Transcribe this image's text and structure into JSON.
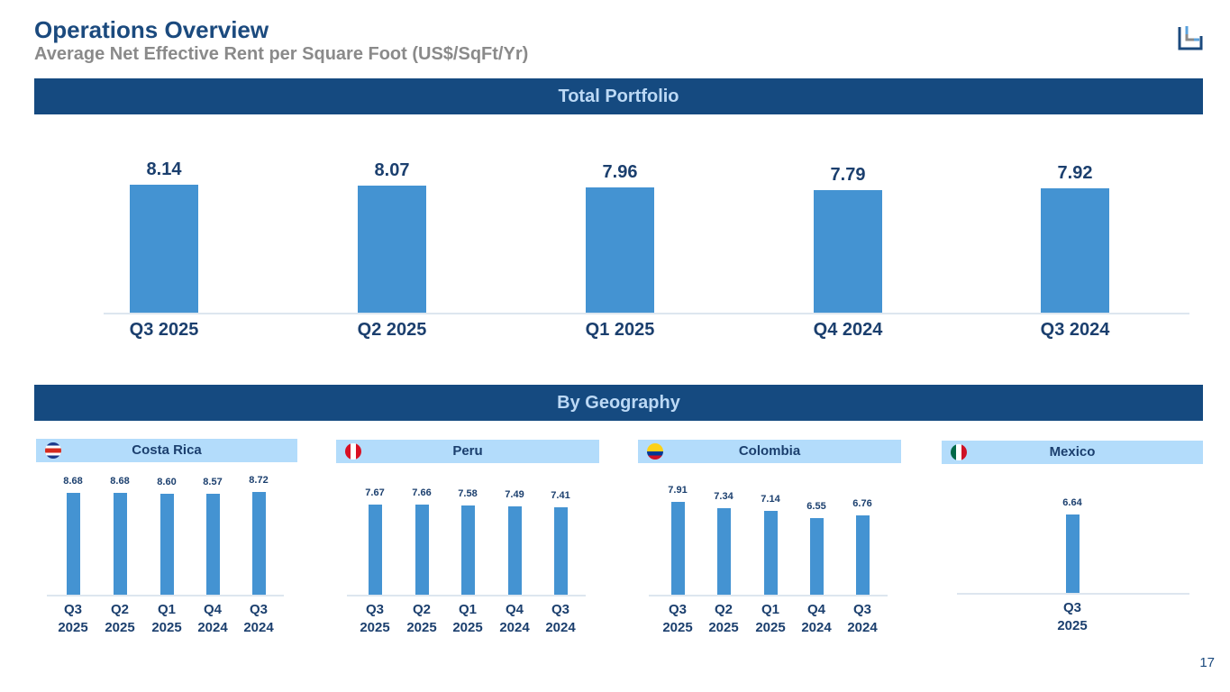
{
  "header": {
    "title": "Operations Overview",
    "subtitle": "Average Net Effective Rent per Square Foot (US$/SqFt/Yr)"
  },
  "banners": {
    "total": "Total Portfolio",
    "geography": "By Geography"
  },
  "page_number": "17",
  "colors": {
    "bar": "#4493d2",
    "banner": "#154a80",
    "panel_header": "#b3dcfb",
    "text": "#1b3f6e"
  },
  "chart_data": [
    {
      "type": "bar",
      "title": "Total Portfolio",
      "categories": [
        "Q3 2025",
        "Q2 2025",
        "Q1 2025",
        "Q4 2024",
        "Q3 2024"
      ],
      "values": [
        8.14,
        8.07,
        7.96,
        7.79,
        7.92
      ],
      "labels": [
        "8.14",
        "8.07",
        "7.96",
        "7.79",
        "7.92"
      ],
      "ylim": [
        0,
        9
      ]
    },
    {
      "type": "bar",
      "title": "Costa Rica",
      "categories": [
        "Q3\n2025",
        "Q2\n2025",
        "Q1\n2025",
        "Q4\n2024",
        "Q3\n2024"
      ],
      "values": [
        8.68,
        8.68,
        8.6,
        8.57,
        8.72
      ],
      "labels": [
        "8.68",
        "8.68",
        "8.60",
        "8.57",
        "8.72"
      ],
      "ylim": [
        0,
        10
      ]
    },
    {
      "type": "bar",
      "title": "Peru",
      "categories": [
        "Q3\n2025",
        "Q2\n2025",
        "Q1\n2025",
        "Q4\n2024",
        "Q3\n2024"
      ],
      "values": [
        7.67,
        7.66,
        7.58,
        7.49,
        7.41
      ],
      "labels": [
        "7.67",
        "7.66",
        "7.58",
        "7.49",
        "7.41"
      ],
      "ylim": [
        0,
        10
      ]
    },
    {
      "type": "bar",
      "title": "Colombia",
      "categories": [
        "Q3\n2025",
        "Q2\n2025",
        "Q1\n2025",
        "Q4\n2024",
        "Q3\n2024"
      ],
      "values": [
        7.91,
        7.34,
        7.14,
        6.55,
        6.76
      ],
      "labels": [
        "7.91",
        "7.34",
        "7.14",
        "6.55",
        "6.76"
      ],
      "ylim": [
        0,
        10
      ]
    },
    {
      "type": "bar",
      "title": "Mexico",
      "categories": [
        "Q3\n2025"
      ],
      "values": [
        6.64
      ],
      "labels": [
        "6.64"
      ],
      "ylim": [
        0,
        10
      ]
    }
  ]
}
